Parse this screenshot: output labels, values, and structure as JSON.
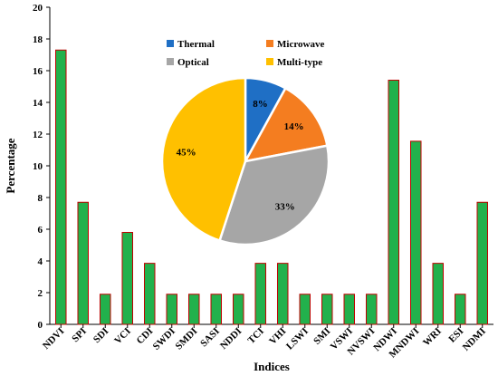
{
  "chart_data": [
    {
      "type": "bar",
      "categories": [
        "NDVI",
        "SPI",
        "SDI",
        "VCI",
        "CDI",
        "SWDI",
        "SMDI",
        "SASI",
        "NDDI",
        "TCI",
        "VHI",
        "LSWI",
        "SMI",
        "VSWI",
        "NVSWI",
        "NDWI",
        "MNDWI",
        "WRI",
        "ESI",
        "NDMI"
      ],
      "values": [
        17.3,
        7.7,
        1.9,
        5.8,
        3.85,
        1.9,
        1.9,
        1.9,
        1.9,
        3.85,
        3.85,
        1.9,
        1.9,
        1.9,
        1.9,
        15.4,
        11.55,
        3.85,
        1.9,
        7.7
      ],
      "xlabel": "Indices",
      "ylabel": "Percentage",
      "ylim": [
        0,
        20
      ],
      "yticks": [
        0,
        2,
        4,
        6,
        8,
        10,
        12,
        14,
        16,
        18,
        20
      ],
      "grid": false,
      "colors": {
        "bar_fill": "#22b14c",
        "bar_edge": "#c00000"
      }
    },
    {
      "type": "pie",
      "slices": [
        {
          "label": "Thermal",
          "value": 8,
          "text": "8%",
          "color": "#1f6fc5"
        },
        {
          "label": "Microwave",
          "value": 14,
          "text": "14%",
          "color": "#f47d20"
        },
        {
          "label": "Optical",
          "value": 33,
          "text": "33%",
          "color": "#a6a6a6"
        },
        {
          "label": "Multi-type",
          "value": 45,
          "text": "45%",
          "color": "#ffc000"
        }
      ],
      "legend_position": "top"
    }
  ]
}
